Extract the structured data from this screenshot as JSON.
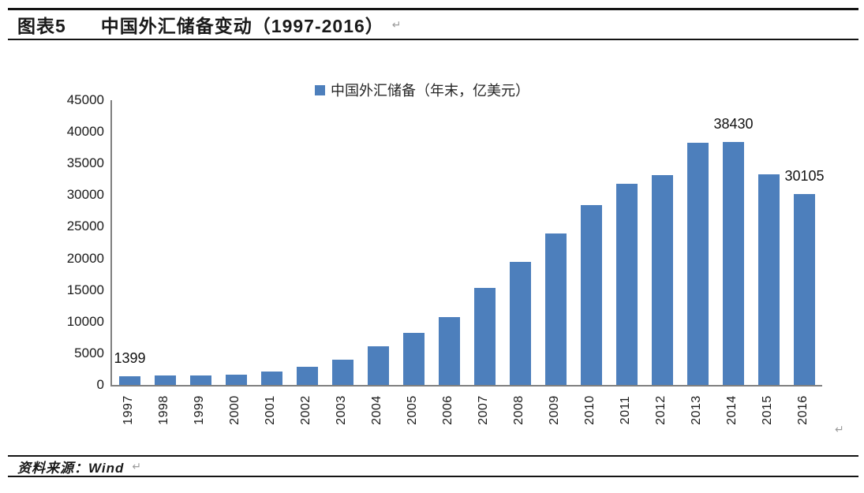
{
  "header": {
    "figure_label": "图表5",
    "title": "中国外汇储备变动（1997-2016）",
    "paragraph_mark": "↵"
  },
  "chart_data": {
    "type": "bar",
    "title": "中国外汇储备变动（1997-2016）",
    "legend": "中国外汇储备（年末，亿美元）",
    "categories": [
      "1997",
      "1998",
      "1999",
      "2000",
      "2001",
      "2002",
      "2003",
      "2004",
      "2005",
      "2006",
      "2007",
      "2008",
      "2009",
      "2010",
      "2011",
      "2012",
      "2013",
      "2014",
      "2015",
      "2016"
    ],
    "values": [
      1399,
      1450,
      1547,
      1656,
      2122,
      2864,
      4033,
      6099,
      8189,
      10663,
      15282,
      19460,
      23992,
      28473,
      31811,
      33116,
      38213,
      38430,
      33304,
      30105
    ],
    "data_labels": {
      "1997": "1399",
      "2014": "38430",
      "2016": "30105"
    },
    "xlabel": "",
    "ylabel": "",
    "ylim": [
      0,
      45000
    ],
    "y_ticks": [
      0,
      5000,
      10000,
      15000,
      20000,
      25000,
      30000,
      35000,
      40000,
      45000
    ],
    "grid": false,
    "legend_position": "top-center",
    "bar_color": "#4d7fbc",
    "axis_color": "#7f7f7f",
    "label_color": "#111111"
  },
  "footer": {
    "source": "资料来源：Wind",
    "paragraph_mark": "↵"
  },
  "marks": {
    "chart_end_mark": "↵"
  }
}
